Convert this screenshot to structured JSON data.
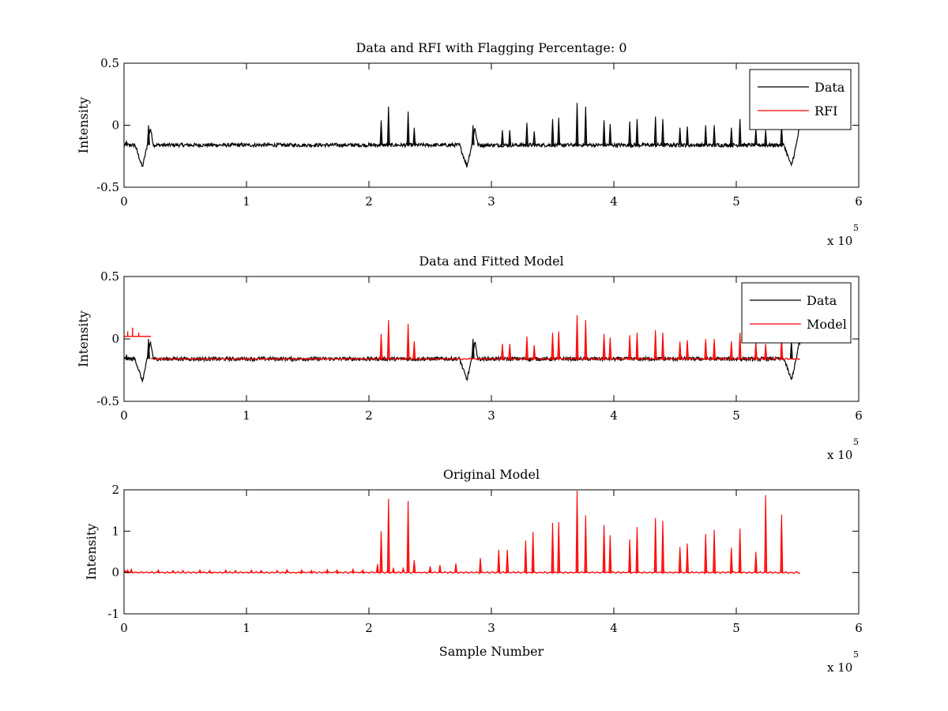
{
  "figure": {
    "background": "#ffffff",
    "colors": {
      "data": "#000000",
      "model": "#ff0000"
    }
  },
  "chart_data": [
    {
      "type": "line",
      "title": "Data and RFI with Flagging Percentage: 0",
      "xlabel": "",
      "ylabel": "Intensity",
      "xlim": [
        0,
        600000
      ],
      "ylim": [
        -0.5,
        0.5
      ],
      "xticks": [
        0,
        100000,
        200000,
        300000,
        400000,
        500000,
        600000
      ],
      "xticklabels": [
        "0",
        "1",
        "2",
        "3",
        "4",
        "5",
        "6"
      ],
      "yticks": [
        -0.5,
        0,
        0.5
      ],
      "yticklabels": [
        "-0.5",
        "0",
        "0.5"
      ],
      "x_multiplier": "x 10",
      "x_multiplier_exp": "5",
      "legend": {
        "position": "top-right",
        "entries": [
          "Data",
          "RFI"
        ]
      },
      "series": [
        {
          "name": "Data",
          "color": "#000000",
          "baseline": -0.16,
          "noise": 0.03,
          "x_end": 552000,
          "dips": [
            {
              "x": 15000,
              "y": -0.34
            },
            {
              "x": 280000,
              "y": -0.33
            },
            {
              "x": 545000,
              "y": -0.33
            }
          ],
          "peaks": [
            {
              "x": 2000,
              "y": -0.13
            },
            {
              "x": 20000,
              "y": 0.0
            },
            {
              "x": 210000,
              "y": 0.04
            },
            {
              "x": 216000,
              "y": 0.15
            },
            {
              "x": 232000,
              "y": 0.11
            },
            {
              "x": 237000,
              "y": -0.02
            },
            {
              "x": 285000,
              "y": 0.0
            },
            {
              "x": 309000,
              "y": -0.04
            },
            {
              "x": 315000,
              "y": -0.04
            },
            {
              "x": 329000,
              "y": 0.02
            },
            {
              "x": 335000,
              "y": -0.05
            },
            {
              "x": 350000,
              "y": 0.05
            },
            {
              "x": 355000,
              "y": 0.06
            },
            {
              "x": 370000,
              "y": 0.18
            },
            {
              "x": 377000,
              "y": 0.15
            },
            {
              "x": 392000,
              "y": 0.04
            },
            {
              "x": 397000,
              "y": 0.01
            },
            {
              "x": 413000,
              "y": 0.03
            },
            {
              "x": 419000,
              "y": 0.05
            },
            {
              "x": 434000,
              "y": 0.07
            },
            {
              "x": 440000,
              "y": 0.05
            },
            {
              "x": 454000,
              "y": -0.02
            },
            {
              "x": 460000,
              "y": -0.01
            },
            {
              "x": 475000,
              "y": -0.0
            },
            {
              "x": 482000,
              "y": 0.0
            },
            {
              "x": 496000,
              "y": -0.02
            },
            {
              "x": 503000,
              "y": 0.05
            },
            {
              "x": 516000,
              "y": -0.03
            },
            {
              "x": 524000,
              "y": -0.04
            },
            {
              "x": 537000,
              "y": 0.01
            }
          ]
        },
        {
          "name": "RFI",
          "color": "#ff0000",
          "points": []
        }
      ]
    },
    {
      "type": "line",
      "title": "Data and Fitted Model",
      "xlabel": "",
      "ylabel": "Intensity",
      "xlim": [
        0,
        600000
      ],
      "ylim": [
        -0.5,
        0.5
      ],
      "xticks": [
        0,
        100000,
        200000,
        300000,
        400000,
        500000,
        600000
      ],
      "xticklabels": [
        "0",
        "1",
        "2",
        "3",
        "4",
        "5",
        "6"
      ],
      "yticks": [
        -0.5,
        0,
        0.5
      ],
      "yticklabels": [
        "-0.5",
        "0",
        "0.5"
      ],
      "x_multiplier": "x 10",
      "x_multiplier_exp": "5",
      "legend": {
        "position": "top-right",
        "entries": [
          "Data",
          "Model"
        ]
      },
      "series": [
        {
          "name": "Data",
          "color": "#000000",
          "baseline": -0.16,
          "noise": 0.03,
          "x_end": 552000,
          "dips": [
            {
              "x": 15000,
              "y": -0.34
            },
            {
              "x": 280000,
              "y": -0.33
            },
            {
              "x": 545000,
              "y": -0.33
            }
          ],
          "peaks": [
            {
              "x": 2000,
              "y": -0.13
            },
            {
              "x": 20000,
              "y": 0.0
            },
            {
              "x": 285000,
              "y": 0.0
            },
            {
              "x": 545000,
              "y": -0.01
            }
          ]
        },
        {
          "name": "Model",
          "color": "#ff0000",
          "baseline": -0.16,
          "x_start": 22000,
          "x_end": 552000,
          "offset_segment": {
            "x0": 0,
            "x1": 22000,
            "y": 0.02
          },
          "offset_peaks": [
            {
              "x": 3000,
              "y": 0.06
            },
            {
              "x": 7000,
              "y": 0.09
            },
            {
              "x": 12000,
              "y": 0.05
            }
          ],
          "peaks": [
            {
              "x": 210000,
              "y": 0.04
            },
            {
              "x": 216000,
              "y": 0.15
            },
            {
              "x": 232000,
              "y": 0.12
            },
            {
              "x": 237000,
              "y": -0.02
            },
            {
              "x": 309000,
              "y": -0.04
            },
            {
              "x": 315000,
              "y": -0.04
            },
            {
              "x": 329000,
              "y": 0.02
            },
            {
              "x": 335000,
              "y": -0.05
            },
            {
              "x": 350000,
              "y": 0.05
            },
            {
              "x": 355000,
              "y": 0.06
            },
            {
              "x": 370000,
              "y": 0.19
            },
            {
              "x": 377000,
              "y": 0.15
            },
            {
              "x": 392000,
              "y": 0.04
            },
            {
              "x": 397000,
              "y": 0.01
            },
            {
              "x": 413000,
              "y": 0.03
            },
            {
              "x": 419000,
              "y": 0.05
            },
            {
              "x": 434000,
              "y": 0.07
            },
            {
              "x": 440000,
              "y": 0.05
            },
            {
              "x": 454000,
              "y": -0.02
            },
            {
              "x": 460000,
              "y": -0.01
            },
            {
              "x": 475000,
              "y": 0.0
            },
            {
              "x": 482000,
              "y": 0.0
            },
            {
              "x": 496000,
              "y": -0.02
            },
            {
              "x": 503000,
              "y": 0.05
            },
            {
              "x": 516000,
              "y": -0.02
            },
            {
              "x": 524000,
              "y": -0.04
            },
            {
              "x": 537000,
              "y": 0.01
            }
          ]
        }
      ]
    },
    {
      "type": "line",
      "title": "Original Model",
      "xlabel": "Sample Number",
      "ylabel": "Intensity",
      "xlim": [
        0,
        600000
      ],
      "ylim": [
        -1,
        2
      ],
      "xticks": [
        0,
        100000,
        200000,
        300000,
        400000,
        500000,
        600000
      ],
      "xticklabels": [
        "0",
        "1",
        "2",
        "3",
        "4",
        "5",
        "6"
      ],
      "yticks": [
        -1,
        0,
        1,
        2
      ],
      "yticklabels": [
        "-1",
        "0",
        "1",
        "2"
      ],
      "x_multiplier": "x 10",
      "x_multiplier_exp": "5",
      "series": [
        {
          "name": "Model",
          "color": "#ff0000",
          "baseline": 0,
          "x_end": 552000,
          "peaks": [
            {
              "x": 1000,
              "y": 0.05
            },
            {
              "x": 3000,
              "y": 0.06
            },
            {
              "x": 6000,
              "y": 0.08
            },
            {
              "x": 28000,
              "y": 0.06
            },
            {
              "x": 40000,
              "y": 0.05
            },
            {
              "x": 48000,
              "y": 0.05
            },
            {
              "x": 62000,
              "y": 0.06
            },
            {
              "x": 70000,
              "y": 0.05
            },
            {
              "x": 83000,
              "y": 0.06
            },
            {
              "x": 91000,
              "y": 0.05
            },
            {
              "x": 104000,
              "y": 0.06
            },
            {
              "x": 112000,
              "y": 0.05
            },
            {
              "x": 125000,
              "y": 0.05
            },
            {
              "x": 133000,
              "y": 0.07
            },
            {
              "x": 145000,
              "y": 0.06
            },
            {
              "x": 153000,
              "y": 0.05
            },
            {
              "x": 166000,
              "y": 0.07
            },
            {
              "x": 174000,
              "y": 0.06
            },
            {
              "x": 187000,
              "y": 0.08
            },
            {
              "x": 195000,
              "y": 0.06
            },
            {
              "x": 207000,
              "y": 0.2
            },
            {
              "x": 210000,
              "y": 1.0
            },
            {
              "x": 216000,
              "y": 1.78
            },
            {
              "x": 220000,
              "y": 0.1
            },
            {
              "x": 228000,
              "y": 0.1
            },
            {
              "x": 232000,
              "y": 1.73
            },
            {
              "x": 237000,
              "y": 0.3
            },
            {
              "x": 250000,
              "y": 0.15
            },
            {
              "x": 258000,
              "y": 0.18
            },
            {
              "x": 271000,
              "y": 0.22
            },
            {
              "x": 291000,
              "y": 0.35
            },
            {
              "x": 306000,
              "y": 0.55
            },
            {
              "x": 313000,
              "y": 0.55
            },
            {
              "x": 328000,
              "y": 0.77
            },
            {
              "x": 334000,
              "y": 0.98
            },
            {
              "x": 350000,
              "y": 1.2
            },
            {
              "x": 355000,
              "y": 1.22
            },
            {
              "x": 370000,
              "y": 1.98
            },
            {
              "x": 377000,
              "y": 1.38
            },
            {
              "x": 392000,
              "y": 1.15
            },
            {
              "x": 397000,
              "y": 0.9
            },
            {
              "x": 413000,
              "y": 0.8
            },
            {
              "x": 419000,
              "y": 1.1
            },
            {
              "x": 434000,
              "y": 1.32
            },
            {
              "x": 440000,
              "y": 1.25
            },
            {
              "x": 454000,
              "y": 0.62
            },
            {
              "x": 460000,
              "y": 0.7
            },
            {
              "x": 475000,
              "y": 0.93
            },
            {
              "x": 482000,
              "y": 1.03
            },
            {
              "x": 496000,
              "y": 0.6
            },
            {
              "x": 503000,
              "y": 1.06
            },
            {
              "x": 516000,
              "y": 0.5
            },
            {
              "x": 524000,
              "y": 1.87
            },
            {
              "x": 537000,
              "y": 1.4
            }
          ]
        }
      ]
    }
  ]
}
